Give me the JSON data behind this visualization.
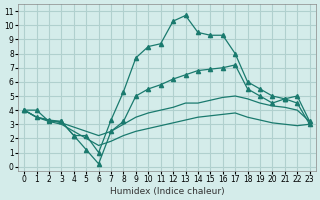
{
  "xlabel": "Humidex (Indice chaleur)",
  "ylabel": "",
  "background_color": "#d4ecea",
  "grid_color": "#b0d0ce",
  "line_color": "#1a7a6e",
  "x_ticks": [
    0,
    1,
    2,
    3,
    4,
    5,
    6,
    7,
    8,
    9,
    10,
    11,
    12,
    13,
    14,
    15,
    16,
    17,
    18,
    19,
    20,
    21,
    22,
    23
  ],
  "y_ticks": [
    0,
    1,
    2,
    3,
    4,
    5,
    6,
    7,
    8,
    9,
    10,
    11
  ],
  "xlim": [
    -0.5,
    23.5
  ],
  "ylim": [
    -0.3,
    11.5
  ],
  "series": [
    {
      "x": [
        0,
        1,
        2,
        3,
        4,
        5,
        6,
        7,
        8,
        9,
        10,
        11,
        12,
        13,
        14,
        15,
        16,
        17,
        18,
        19,
        20,
        21,
        22,
        23
      ],
      "y": [
        4.0,
        4.0,
        3.2,
        3.2,
        2.2,
        2.2,
        1.0,
        3.3,
        5.3,
        7.7,
        8.5,
        8.7,
        10.3,
        10.7,
        9.5,
        9.3,
        9.3,
        8.0,
        6.0,
        5.5,
        5.0,
        4.8,
        4.5,
        3.0
      ],
      "marker": "^",
      "markersize": 3
    },
    {
      "x": [
        0,
        1,
        2,
        3,
        4,
        5,
        6,
        7,
        8,
        9,
        10,
        11,
        12,
        13,
        14,
        15,
        16,
        17,
        18,
        19,
        20,
        21,
        22,
        23
      ],
      "y": [
        4.0,
        3.5,
        3.3,
        3.2,
        2.2,
        1.2,
        0.2,
        2.5,
        3.2,
        5.0,
        5.5,
        5.8,
        6.2,
        6.5,
        6.8,
        6.9,
        7.0,
        7.2,
        5.5,
        5.0,
        4.5,
        4.8,
        5.0,
        3.2
      ],
      "marker": "^",
      "markersize": 3
    },
    {
      "x": [
        0,
        1,
        2,
        3,
        4,
        5,
        6,
        7,
        8,
        9,
        10,
        11,
        12,
        13,
        14,
        15,
        16,
        17,
        18,
        19,
        20,
        21,
        22,
        23
      ],
      "y": [
        4.0,
        3.5,
        3.3,
        3.1,
        2.8,
        2.5,
        2.2,
        2.5,
        3.0,
        3.5,
        3.8,
        4.0,
        4.2,
        4.5,
        4.5,
        4.7,
        4.9,
        5.0,
        4.8,
        4.5,
        4.3,
        4.2,
        4.0,
        3.2
      ],
      "marker": null,
      "markersize": 0
    },
    {
      "x": [
        0,
        1,
        2,
        3,
        4,
        5,
        6,
        7,
        8,
        9,
        10,
        11,
        12,
        13,
        14,
        15,
        16,
        17,
        18,
        19,
        20,
        21,
        22,
        23
      ],
      "y": [
        4.0,
        3.5,
        3.2,
        3.0,
        2.5,
        2.0,
        1.5,
        1.8,
        2.2,
        2.5,
        2.7,
        2.9,
        3.1,
        3.3,
        3.5,
        3.6,
        3.7,
        3.8,
        3.5,
        3.3,
        3.1,
        3.0,
        2.9,
        3.0
      ],
      "marker": null,
      "markersize": 0
    }
  ]
}
